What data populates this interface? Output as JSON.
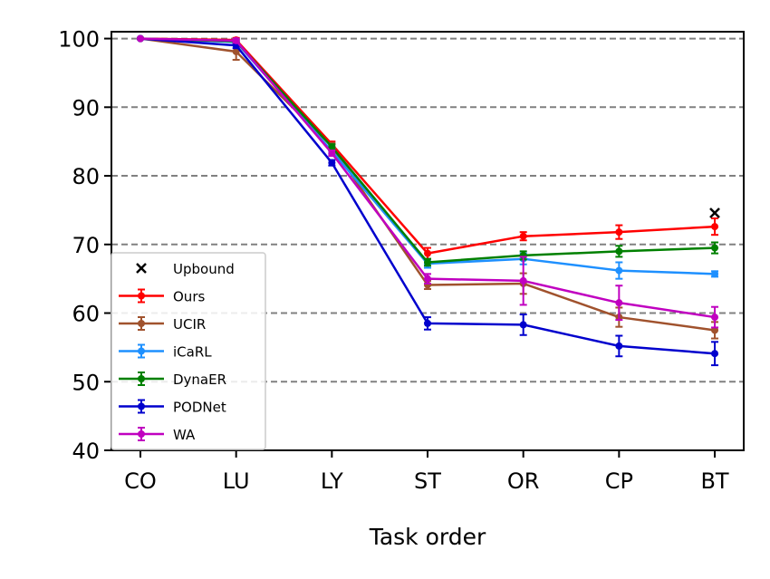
{
  "chart_data": {
    "type": "line",
    "xlabel": "Task order",
    "ylabel": "",
    "title": "",
    "categories": [
      "CO",
      "LU",
      "LY",
      "ST",
      "OR",
      "CP",
      "BT"
    ],
    "ylim": [
      40,
      101
    ],
    "yticks": [
      40,
      50,
      60,
      70,
      80,
      90,
      100
    ],
    "grid": "horizontal-dashed",
    "legend_position": "lower-left",
    "upbound": {
      "name": "Upbound",
      "x": "BT",
      "y": 74.6,
      "color": "#000000",
      "marker": "x"
    },
    "series": [
      {
        "name": "Ours",
        "color": "#ff0000",
        "values": [
          100,
          99.8,
          84.6,
          68.7,
          71.2,
          71.8,
          72.6
        ],
        "errors": [
          0,
          0.3,
          0.4,
          0.8,
          0.6,
          1.0,
          1.2
        ]
      },
      {
        "name": "UCIR",
        "color": "#a0522d",
        "values": [
          100,
          98.1,
          84.3,
          64.1,
          64.3,
          59.4,
          57.5
        ],
        "errors": [
          0,
          1.2,
          0.5,
          0.6,
          1.5,
          1.4,
          1.2
        ]
      },
      {
        "name": "iCaRL",
        "color": "#1e90ff",
        "values": [
          100,
          99.5,
          83.6,
          67.2,
          67.9,
          66.2,
          65.7
        ],
        "errors": [
          0,
          0.3,
          0.4,
          0.6,
          0.8,
          1.2,
          0.4
        ]
      },
      {
        "name": "DynaER",
        "color": "#008000",
        "values": [
          100,
          99.6,
          84.2,
          67.4,
          68.4,
          69.0,
          69.5
        ],
        "errors": [
          0,
          0.3,
          0.4,
          0.5,
          0.6,
          0.8,
          0.8
        ]
      },
      {
        "name": "PODNet",
        "color": "#0000cd",
        "values": [
          100,
          99.0,
          81.9,
          58.5,
          58.3,
          55.2,
          54.1
        ],
        "errors": [
          0,
          0.4,
          0.4,
          0.9,
          1.5,
          1.5,
          1.7
        ]
      },
      {
        "name": "WA",
        "color": "#c000c0",
        "values": [
          100,
          99.7,
          83.3,
          65.0,
          64.7,
          61.5,
          59.4
        ],
        "errors": [
          0,
          0.3,
          0.4,
          0.7,
          3.5,
          2.5,
          1.5
        ]
      }
    ]
  }
}
